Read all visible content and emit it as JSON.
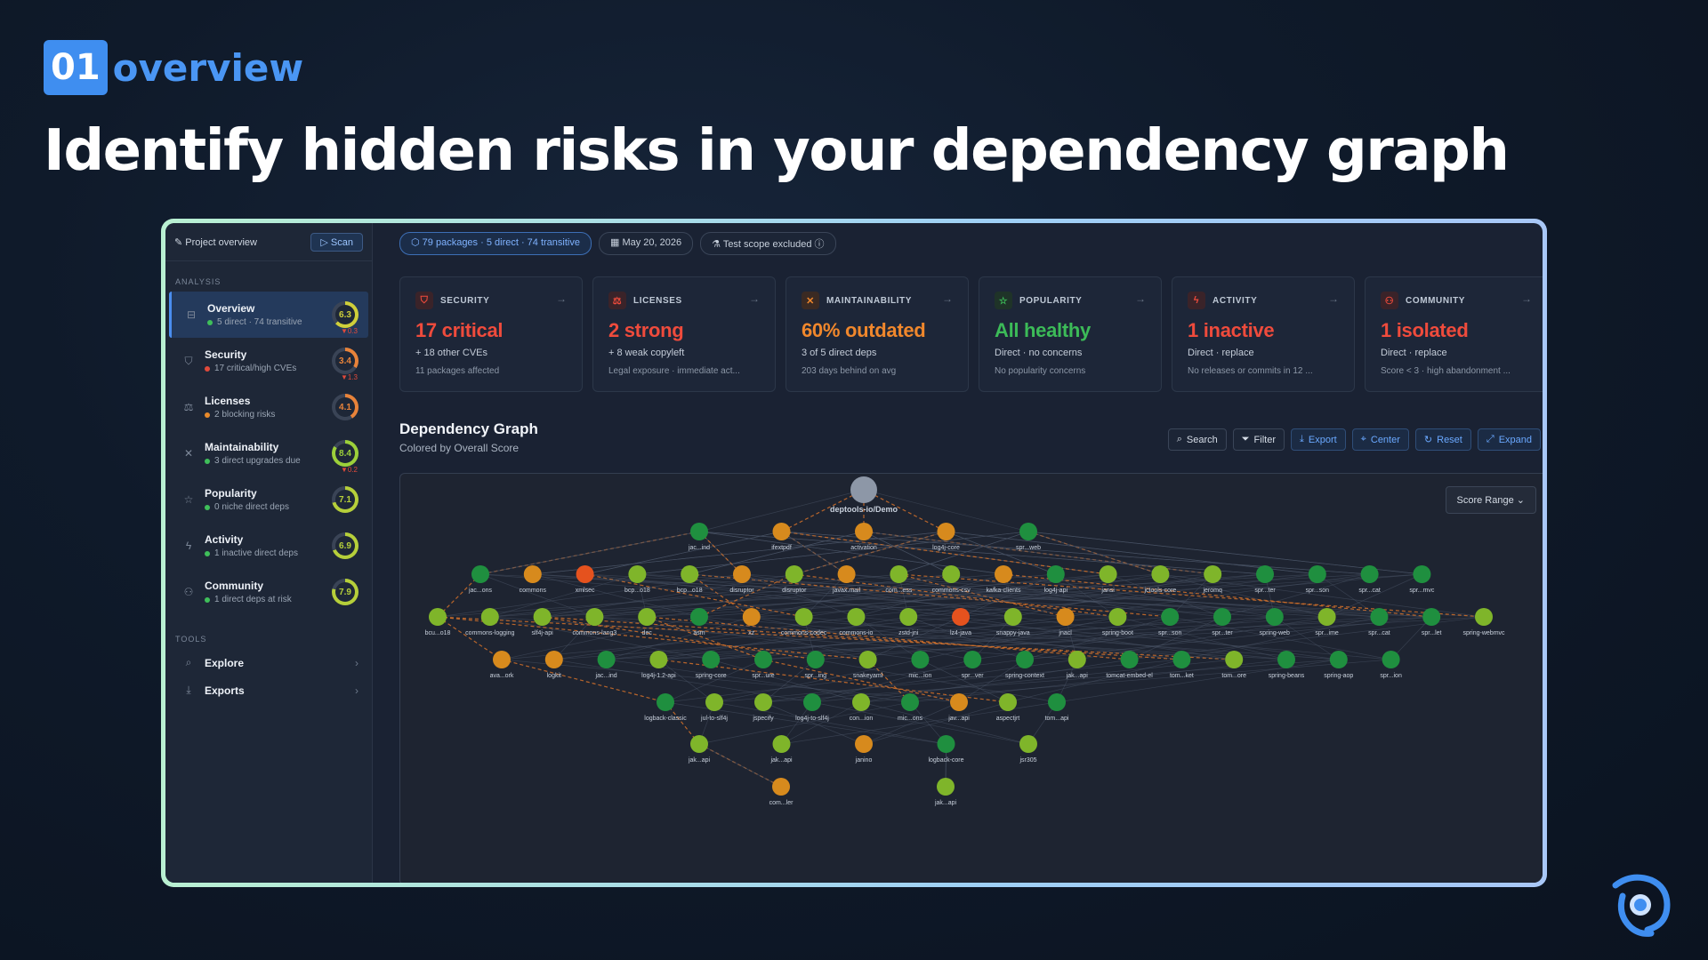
{
  "badge": {
    "number": "01",
    "word": "overview"
  },
  "headline": "Identify hidden risks in your dependency graph",
  "sidebar": {
    "project_label": "Project overview",
    "scan_label": "Scan",
    "analysis_label": "ANALYSIS",
    "tools_label": "TOOLS",
    "items": [
      {
        "label": "Overview",
        "sub": "5 direct · 74 transitive",
        "score": "6.3",
        "delta": "▼0.3",
        "dot": "#3fbf5a",
        "ring": "#cfcf3a",
        "icon": "overview-icon",
        "glyph": "⊟"
      },
      {
        "label": "Security",
        "sub": "17 critical/high CVEs",
        "score": "3.4",
        "delta": "▼1.3",
        "dot": "#e04a3b",
        "ring": "#e8833a",
        "icon": "shield-icon",
        "glyph": "⛉"
      },
      {
        "label": "Licenses",
        "sub": "2 blocking risks",
        "score": "4.1",
        "delta": "",
        "dot": "#e88a2a",
        "ring": "#e8833a",
        "icon": "scale-icon",
        "glyph": "⚖"
      },
      {
        "label": "Maintainability",
        "sub": "3 direct upgrades due",
        "score": "8.4",
        "delta": "▼0.2",
        "dot": "#3fbf5a",
        "ring": "#9cd03a",
        "icon": "wrench-icon",
        "glyph": "✕"
      },
      {
        "label": "Popularity",
        "sub": "0 niche direct deps",
        "score": "7.1",
        "delta": "",
        "dot": "#3fbf5a",
        "ring": "#b6cf3a",
        "icon": "star-icon",
        "glyph": "☆"
      },
      {
        "label": "Activity",
        "sub": "1 inactive direct deps",
        "score": "6.9",
        "delta": "",
        "dot": "#3fbf5a",
        "ring": "#b6cf3a",
        "icon": "bolt-icon",
        "glyph": "ϟ"
      },
      {
        "label": "Community",
        "sub": "1 direct deps at risk",
        "score": "7.9",
        "delta": "",
        "dot": "#3fbf5a",
        "ring": "#b6cf3a",
        "icon": "people-icon",
        "glyph": "⚇"
      }
    ],
    "tools": [
      {
        "label": "Explore",
        "icon": "search-icon",
        "glyph": "⌕"
      },
      {
        "label": "Exports",
        "icon": "download-icon",
        "glyph": "⤓"
      }
    ]
  },
  "pills": {
    "packages": "79 packages · 5 direct · 74 transitive",
    "date": "May 20, 2026",
    "scope": "Test scope excluded"
  },
  "cards": [
    {
      "title": "SECURITY",
      "value": "17 critical",
      "line1": "+ 18 other CVEs",
      "line2": "11 packages affected",
      "color": "#ef4b3c",
      "icon": "shield-icon",
      "glyph": "⛉",
      "icbg": "#3a2329"
    },
    {
      "title": "LICENSES",
      "value": "2 strong",
      "line1": "+ 8 weak copyleft",
      "line2": "Legal exposure · immediate act...",
      "color": "#ef4b3c",
      "icon": "scale-icon",
      "glyph": "⚖",
      "icbg": "#3a2329"
    },
    {
      "title": "MAINTAINABILITY",
      "value": "60% outdated",
      "line1": "3 of 5 direct deps",
      "line2": "203 days behind on avg",
      "color": "#f0872c",
      "icon": "wrench-icon",
      "glyph": "✕",
      "icbg": "#3a2a23"
    },
    {
      "title": "POPULARITY",
      "value": "All healthy",
      "line1": "Direct · no concerns",
      "line2": "No popularity concerns",
      "color": "#3cbb58",
      "icon": "star-icon",
      "glyph": "☆",
      "icbg": "#1f3328"
    },
    {
      "title": "ACTIVITY",
      "value": "1 inactive",
      "line1": "Direct · replace",
      "line2": "No releases or commits in 12 ...",
      "color": "#ef4b3c",
      "icon": "bolt-icon",
      "glyph": "ϟ",
      "icbg": "#3a2329"
    },
    {
      "title": "COMMUNITY",
      "value": "1 isolated",
      "line1": "Direct · replace",
      "line2": "Score < 3 · high abandonment ...",
      "color": "#ef4b3c",
      "icon": "people-icon",
      "glyph": "⚇",
      "icbg": "#3a2329"
    }
  ],
  "graph": {
    "title": "Dependency Graph",
    "subtitle": "Colored by Overall Score",
    "buttons": [
      "Search",
      "Filter",
      "Export",
      "Center",
      "Reset",
      "Expand"
    ],
    "score_range": "Score Range",
    "colors": {
      "good": "#1f8f3f",
      "ok": "#7fb52a",
      "mid": "#d78a1d",
      "bad": "#e5521e",
      "root": "#8d97a7"
    },
    "root": "deptools-io/Demo",
    "rows": [
      [
        "jac...ind:good",
        "ifextpdf:mid",
        "activation:mid",
        "log4j-core:mid",
        "spr...web:good"
      ],
      [
        "jac...ons:good",
        "commons:mid",
        "xmlsec:bad",
        "bcp...o18:ok",
        "bcp...o18:ok",
        "disruptor:mid",
        "disruptor:ok",
        "javax.mail:mid",
        "com...ess:ok",
        "commons-csv:ok",
        "kafka-clients:mid",
        "log4j-api:good",
        "jansi:ok",
        "jctools-core:ok",
        "jeromq:ok",
        "spr...ter:good",
        "spr...son:good",
        "spr...cat:good",
        "spr...mvc:good"
      ],
      [
        "bcu...o18:ok",
        "commons-logging:ok",
        "slf4j-api:ok",
        "commons-lang3:ok",
        "dec:ok",
        "asm:good",
        "xz:mid",
        "commons-codec:ok",
        "commons-io:ok",
        "zstd-jni:ok",
        "lz4-java:bad",
        "snappy-java:ok",
        "jnacl:mid",
        "spring-boot:ok",
        "spr...son:good",
        "spr...ter:good",
        "spring-web:good",
        "spr...ime:ok",
        "spr...cat:good",
        "spr...let:good",
        "spring-webmvc:ok"
      ],
      [
        "ava...ork:mid",
        "logkit:mid",
        "jac...ind:good",
        "log4j-1.2-api:ok",
        "spring-core:good",
        "spr...ure:good",
        "spr...ing:good",
        "snakeyaml:ok",
        "mic...ion:good",
        "spr...ver:good",
        "spring-context:good",
        "jak...api:ok",
        "tomcat-embed-el:good",
        "tom...ket:good",
        "tom...ore:ok",
        "spring-beans:good",
        "spring-aop:good",
        "spr...ion:good"
      ],
      [
        "logback-classic:good",
        "jul-to-slf4j:ok",
        "jspecify:ok",
        "log4j-to-slf4j:good",
        "con...ion:ok",
        "mic...ons:good",
        "jav...api:mid",
        "aspectjrt:ok",
        "tom...api:good"
      ],
      [
        "jak...api:ok",
        "jak...api:ok",
        "janino:mid",
        "logback-core:good",
        "jsr305:ok"
      ],
      [
        "com...ler:mid",
        "jak...api:ok"
      ]
    ]
  }
}
